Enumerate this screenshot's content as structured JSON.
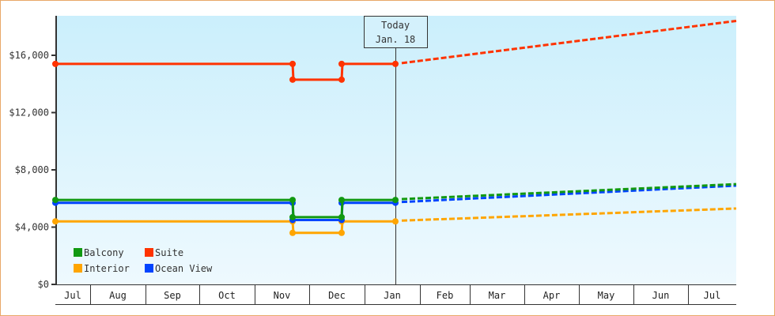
{
  "chart_data": {
    "type": "line",
    "title": "",
    "xlabel": "",
    "ylabel": "",
    "ylim": [
      0,
      18500
    ],
    "y_ticks": [
      "$0",
      "$4,000",
      "$8,000",
      "$12,000",
      "$16,000"
    ],
    "y_tick_values": [
      0,
      4000,
      8000,
      12000,
      16000
    ],
    "x_months": [
      "Jul",
      "Aug",
      "Sep",
      "Oct",
      "Nov",
      "Dec",
      "Jan",
      "Feb",
      "Mar",
      "Apr",
      "May",
      "Jun",
      "Jul"
    ],
    "today_marker": {
      "line1": "Today",
      "line2": "Jan. 18"
    },
    "grid": false,
    "legend_position": "lower-left inside",
    "series": [
      {
        "name": "Balcony",
        "color": "#119911",
        "historical": [
          {
            "date": "Jul 1",
            "value": 5900
          },
          {
            "date": "Nov 7",
            "value": 5900
          },
          {
            "date": "Nov 8",
            "value": 4700
          },
          {
            "date": "Dec 7",
            "value": 4700
          },
          {
            "date": "Dec 8",
            "value": 5900
          },
          {
            "date": "Jan 18",
            "value": 5900
          }
        ],
        "projected_end": {
          "date": "Jul 31",
          "value": 7000
        }
      },
      {
        "name": "Suite",
        "color": "#ff3300",
        "historical": [
          {
            "date": "Jul 1",
            "value": 15400
          },
          {
            "date": "Nov 7",
            "value": 15400
          },
          {
            "date": "Nov 8",
            "value": 14300
          },
          {
            "date": "Dec 7",
            "value": 14300
          },
          {
            "date": "Dec 8",
            "value": 15400
          },
          {
            "date": "Jan 18",
            "value": 15400
          }
        ],
        "projected_end": {
          "date": "Jul 31",
          "value": 18400
        }
      },
      {
        "name": "Interior",
        "color": "#ffa500",
        "historical": [
          {
            "date": "Jul 1",
            "value": 4400
          },
          {
            "date": "Nov 7",
            "value": 4400
          },
          {
            "date": "Nov 8",
            "value": 3600
          },
          {
            "date": "Dec 7",
            "value": 3600
          },
          {
            "date": "Dec 8",
            "value": 4400
          },
          {
            "date": "Jan 18",
            "value": 4400
          }
        ],
        "projected_end": {
          "date": "Jul 31",
          "value": 5300
        }
      },
      {
        "name": "Ocean View",
        "color": "#0044ff",
        "historical": [
          {
            "date": "Jul 1",
            "value": 5700
          },
          {
            "date": "Nov 7",
            "value": 5700
          },
          {
            "date": "Nov 8",
            "value": 4500
          },
          {
            "date": "Dec 7",
            "value": 4500
          },
          {
            "date": "Dec 8",
            "value": 5700
          },
          {
            "date": "Jan 18",
            "value": 5700
          }
        ],
        "projected_end": {
          "date": "Jul 31",
          "value": 6900
        }
      }
    ]
  },
  "legend": [
    {
      "name": "Balcony",
      "color": "#119911"
    },
    {
      "name": "Suite",
      "color": "#ff3300"
    },
    {
      "name": "Interior",
      "color": "#ffa500"
    },
    {
      "name": "Ocean View",
      "color": "#0044ff"
    }
  ]
}
